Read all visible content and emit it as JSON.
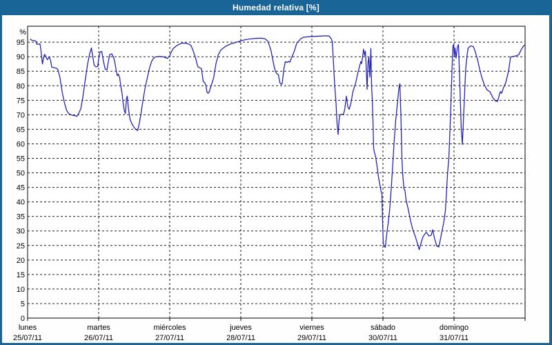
{
  "window": {
    "title": "Humedad relativa [%]"
  },
  "colors": {
    "titlebar_bg": "#1A6598",
    "border": "#1A6598",
    "content_bg": "#FEFEFE",
    "plot_bg": "#FFFFFF",
    "frame": "#000000",
    "grid": "#1A1A1A",
    "text": "#000000",
    "line": "#2323B8"
  },
  "chart_data": {
    "type": "line",
    "title": "Humedad relativa [%]",
    "y_unit_label": "%",
    "ylabel": "",
    "xlabel": "",
    "ylim": [
      0,
      100.5
    ],
    "y_ticks": [
      0,
      5,
      10,
      15,
      20,
      25,
      30,
      35,
      40,
      45,
      50,
      55,
      60,
      65,
      70,
      75,
      80,
      85,
      90,
      95
    ],
    "grid": "dashed",
    "legend": "none",
    "x_categories": [
      {
        "day": "lunes",
        "date": "25/07/11"
      },
      {
        "day": "martes",
        "date": "26/07/11"
      },
      {
        "day": "miércoles",
        "date": "27/07/11"
      },
      {
        "day": "jueves",
        "date": "28/07/11"
      },
      {
        "day": "viernes",
        "date": "29/07/11"
      },
      {
        "day": "sábado",
        "date": "30/07/11"
      },
      {
        "day": "domingo",
        "date": "31/07/11"
      }
    ],
    "x_range_days": [
      0,
      7
    ],
    "series": [
      {
        "name": "Humedad relativa",
        "color": "#2323B8",
        "points": [
          [
            0.039,
            96.0
          ],
          [
            0.058,
            95.7
          ],
          [
            0.117,
            95.4
          ],
          [
            0.126,
            94.3
          ],
          [
            0.175,
            94.4
          ],
          [
            0.189,
            92.0
          ],
          [
            0.199,
            89.5
          ],
          [
            0.209,
            87.5
          ],
          [
            0.223,
            89.5
          ],
          [
            0.238,
            90.8
          ],
          [
            0.252,
            90.3
          ],
          [
            0.277,
            89.0
          ],
          [
            0.306,
            89.9
          ],
          [
            0.325,
            88.5
          ],
          [
            0.34,
            86.4
          ],
          [
            0.379,
            86.2
          ],
          [
            0.408,
            86.0
          ],
          [
            0.427,
            85.5
          ],
          [
            0.456,
            82.7
          ],
          [
            0.485,
            78.0
          ],
          [
            0.515,
            74.5
          ],
          [
            0.549,
            71.5
          ],
          [
            0.583,
            70.3
          ],
          [
            0.621,
            69.9
          ],
          [
            0.66,
            69.7
          ],
          [
            0.694,
            69.5
          ],
          [
            0.718,
            70.5
          ],
          [
            0.748,
            72.0
          ],
          [
            0.777,
            76.0
          ],
          [
            0.811,
            81.9
          ],
          [
            0.845,
            87.5
          ],
          [
            0.874,
            91.1
          ],
          [
            0.898,
            93.0
          ],
          [
            0.917,
            90.0
          ],
          [
            0.937,
            87.1
          ],
          [
            0.961,
            86.5
          ],
          [
            0.985,
            86.6
          ],
          [
            1.005,
            90.0
          ],
          [
            1.019,
            91.7
          ],
          [
            1.044,
            91.8
          ],
          [
            1.068,
            88.3
          ],
          [
            1.092,
            85.7
          ],
          [
            1.117,
            85.5
          ],
          [
            1.136,
            88.3
          ],
          [
            1.155,
            90.7
          ],
          [
            1.184,
            91.0
          ],
          [
            1.214,
            89.5
          ],
          [
            1.228,
            87.9
          ],
          [
            1.248,
            85.1
          ],
          [
            1.262,
            83.5
          ],
          [
            1.277,
            84.0
          ],
          [
            1.296,
            82.7
          ],
          [
            1.311,
            80.0
          ],
          [
            1.33,
            77.2
          ],
          [
            1.345,
            74.0
          ],
          [
            1.359,
            71.6
          ],
          [
            1.376,
            70.4
          ],
          [
            1.391,
            75.6
          ],
          [
            1.403,
            76.4
          ],
          [
            1.417,
            72.4
          ],
          [
            1.442,
            68.4
          ],
          [
            1.466,
            67.0
          ],
          [
            1.495,
            65.8
          ],
          [
            1.524,
            64.9
          ],
          [
            1.549,
            64.6
          ],
          [
            1.563,
            66.0
          ],
          [
            1.587,
            69.2
          ],
          [
            1.617,
            74.0
          ],
          [
            1.65,
            78.8
          ],
          [
            1.684,
            82.7
          ],
          [
            1.714,
            85.9
          ],
          [
            1.743,
            88.3
          ],
          [
            1.767,
            89.3
          ],
          [
            1.796,
            89.9
          ],
          [
            1.845,
            90.1
          ],
          [
            1.903,
            90.0
          ],
          [
            1.942,
            89.7
          ],
          [
            1.966,
            89.4
          ],
          [
            1.981,
            89.8
          ],
          [
            2.0,
            90.3
          ],
          [
            2.019,
            91.5
          ],
          [
            2.049,
            92.8
          ],
          [
            2.087,
            93.6
          ],
          [
            2.117,
            94.1
          ],
          [
            2.155,
            94.5
          ],
          [
            2.194,
            94.7
          ],
          [
            2.233,
            94.6
          ],
          [
            2.272,
            94.3
          ],
          [
            2.301,
            93.8
          ],
          [
            2.33,
            92.0
          ],
          [
            2.364,
            89.5
          ],
          [
            2.393,
            86.7
          ],
          [
            2.417,
            86.2
          ],
          [
            2.447,
            85.9
          ],
          [
            2.471,
            81.5
          ],
          [
            2.495,
            81.0
          ],
          [
            2.51,
            80.0
          ],
          [
            2.524,
            77.8
          ],
          [
            2.539,
            77.4
          ],
          [
            2.553,
            77.8
          ],
          [
            2.587,
            80.3
          ],
          [
            2.617,
            82.7
          ],
          [
            2.65,
            87.5
          ],
          [
            2.684,
            90.7
          ],
          [
            2.718,
            92.3
          ],
          [
            2.782,
            93.5
          ],
          [
            2.845,
            94.3
          ],
          [
            2.942,
            95.0
          ],
          [
            3.01,
            95.5
          ],
          [
            3.068,
            95.9
          ],
          [
            3.126,
            96.1
          ],
          [
            3.204,
            96.3
          ],
          [
            3.281,
            96.4
          ],
          [
            3.34,
            96.2
          ],
          [
            3.379,
            95.4
          ],
          [
            3.403,
            93.8
          ],
          [
            3.427,
            91.9
          ],
          [
            3.461,
            87.5
          ],
          [
            3.485,
            85.0
          ],
          [
            3.505,
            84.2
          ],
          [
            3.529,
            83.8
          ],
          [
            3.549,
            81.1
          ],
          [
            3.568,
            80.5
          ],
          [
            3.583,
            80.8
          ],
          [
            3.607,
            85.9
          ],
          [
            3.626,
            88.3
          ],
          [
            3.65,
            88.0
          ],
          [
            3.67,
            88.4
          ],
          [
            3.689,
            88.1
          ],
          [
            3.718,
            89.9
          ],
          [
            3.752,
            91.9
          ],
          [
            3.786,
            94.6
          ],
          [
            3.816,
            95.4
          ],
          [
            3.845,
            96.2
          ],
          [
            3.883,
            96.7
          ],
          [
            3.961,
            96.9
          ],
          [
            4.039,
            97.0
          ],
          [
            4.117,
            97.1
          ],
          [
            4.194,
            97.2
          ],
          [
            4.243,
            97.1
          ],
          [
            4.272,
            96.2
          ],
          [
            4.286,
            95.4
          ],
          [
            4.306,
            87.1
          ],
          [
            4.32,
            80.4
          ],
          [
            4.34,
            74.0
          ],
          [
            4.354,
            67.0
          ],
          [
            4.369,
            63.2
          ],
          [
            4.383,
            68.0
          ],
          [
            4.393,
            69.9
          ],
          [
            4.417,
            70.2
          ],
          [
            4.442,
            70.0
          ],
          [
            4.461,
            71.7
          ],
          [
            4.485,
            76.4
          ],
          [
            4.505,
            72.8
          ],
          [
            4.524,
            71.9
          ],
          [
            4.549,
            73.9
          ],
          [
            4.578,
            78.0
          ],
          [
            4.617,
            81.1
          ],
          [
            4.646,
            84.3
          ],
          [
            4.675,
            87.1
          ],
          [
            4.689,
            88.3
          ],
          [
            4.699,
            87.6
          ],
          [
            4.714,
            89.9
          ],
          [
            4.728,
            92.6
          ],
          [
            4.743,
            90.5
          ],
          [
            4.752,
            91.9
          ],
          [
            4.762,
            87.5
          ],
          [
            4.777,
            78.8
          ],
          [
            4.791,
            88.3
          ],
          [
            4.801,
            89.9
          ],
          [
            4.816,
            83.0
          ],
          [
            4.83,
            92.8
          ],
          [
            4.84,
            80.0
          ],
          [
            4.85,
            75.5
          ],
          [
            4.859,
            68.0
          ],
          [
            4.869,
            58.5
          ],
          [
            4.879,
            57.2
          ],
          [
            4.898,
            55.5
          ],
          [
            4.918,
            52.0
          ],
          [
            4.937,
            48.6
          ],
          [
            4.956,
            46.0
          ],
          [
            4.971,
            44.0
          ],
          [
            4.985,
            42.5
          ],
          [
            4.995,
            33.0
          ],
          [
            5.005,
            25.6
          ],
          [
            5.019,
            24.6
          ],
          [
            5.034,
            24.4
          ],
          [
            5.049,
            28.0
          ],
          [
            5.078,
            33.5
          ],
          [
            5.097,
            38.0
          ],
          [
            5.117,
            45.0
          ],
          [
            5.136,
            52.0
          ],
          [
            5.155,
            60.0
          ],
          [
            5.18,
            68.0
          ],
          [
            5.204,
            74.0
          ],
          [
            5.223,
            79.0
          ],
          [
            5.238,
            80.7
          ],
          [
            5.252,
            70.0
          ],
          [
            5.267,
            55.0
          ],
          [
            5.277,
            49.8
          ],
          [
            5.296,
            44.5
          ],
          [
            5.311,
            43.8
          ],
          [
            5.325,
            40.7
          ],
          [
            5.359,
            37.1
          ],
          [
            5.388,
            33.5
          ],
          [
            5.417,
            30.7
          ],
          [
            5.456,
            28.0
          ],
          [
            5.485,
            25.7
          ],
          [
            5.51,
            23.6
          ],
          [
            5.534,
            25.7
          ],
          [
            5.563,
            28.0
          ],
          [
            5.597,
            29.2
          ],
          [
            5.612,
            29.5
          ],
          [
            5.646,
            28.3
          ],
          [
            5.68,
            28.5
          ],
          [
            5.699,
            30.4
          ],
          [
            5.728,
            27.2
          ],
          [
            5.757,
            24.8
          ],
          [
            5.786,
            24.5
          ],
          [
            5.806,
            26.8
          ],
          [
            5.825,
            29.3
          ],
          [
            5.854,
            32.8
          ],
          [
            5.879,
            37.0
          ],
          [
            5.893,
            43.0
          ],
          [
            5.908,
            49.4
          ],
          [
            5.927,
            55.0
          ],
          [
            5.951,
            70.0
          ],
          [
            5.971,
            85.0
          ],
          [
            5.985,
            93.8
          ],
          [
            5.995,
            94.2
          ],
          [
            6.005,
            90.2
          ],
          [
            6.015,
            93.0
          ],
          [
            6.029,
            89.5
          ],
          [
            6.049,
            93.5
          ],
          [
            6.063,
            94.2
          ],
          [
            6.083,
            80.0
          ],
          [
            6.102,
            65.0
          ],
          [
            6.117,
            59.8
          ],
          [
            6.136,
            70.0
          ],
          [
            6.151,
            78.8
          ],
          [
            6.165,
            85.9
          ],
          [
            6.184,
            90.7
          ],
          [
            6.199,
            93.0
          ],
          [
            6.233,
            93.7
          ],
          [
            6.272,
            93.5
          ],
          [
            6.296,
            91.9
          ],
          [
            6.33,
            89.1
          ],
          [
            6.359,
            85.9
          ],
          [
            6.393,
            82.7
          ],
          [
            6.427,
            80.3
          ],
          [
            6.466,
            78.5
          ],
          [
            6.505,
            78.0
          ],
          [
            6.544,
            76.0
          ],
          [
            6.583,
            74.8
          ],
          [
            6.612,
            74.6
          ],
          [
            6.651,
            78.0
          ],
          [
            6.67,
            77.4
          ],
          [
            6.699,
            79.5
          ],
          [
            6.728,
            81.1
          ],
          [
            6.767,
            85.0
          ],
          [
            6.796,
            89.9
          ],
          [
            6.835,
            90.1
          ],
          [
            6.874,
            90.3
          ],
          [
            6.913,
            90.7
          ],
          [
            6.947,
            92.5
          ],
          [
            6.976,
            93.6
          ],
          [
            6.995,
            94.0
          ]
        ]
      }
    ]
  }
}
